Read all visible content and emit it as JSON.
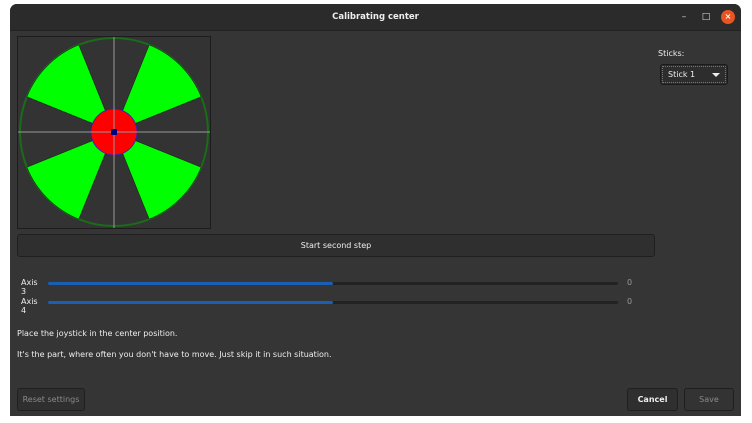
{
  "window": {
    "title": "Calibrating center",
    "minimize": "–",
    "maximize": "□",
    "close": "×"
  },
  "colors": {
    "wedge": "#00ff00",
    "center": "#ff0000",
    "ring": "#1a6b1a",
    "marker": "#000080",
    "accent": "#1a5fb4",
    "close": "#e95420"
  },
  "start_button": "Start second step",
  "sticks": {
    "label": "Sticks:",
    "selected": "Stick 1"
  },
  "axes": [
    {
      "label": "Axis 3",
      "value": "0",
      "fill_fraction": 0.5
    },
    {
      "label": "Axis 4",
      "value": "0",
      "fill_fraction": 0.5
    }
  ],
  "messages": [
    "Place the joystick in the center position.",
    "It's the part, where often you don't have to move. Just skip it in such situation."
  ],
  "buttons": {
    "reset": "Reset settings",
    "cancel": "Cancel",
    "save": "Save"
  }
}
